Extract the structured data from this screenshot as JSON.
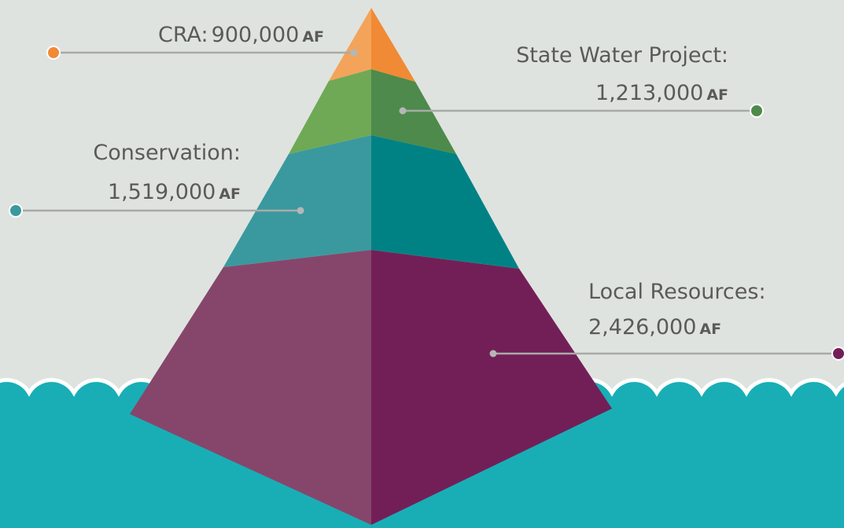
{
  "callouts": [
    {
      "label": "CRA:",
      "amount": "900,000",
      "unit": "AF"
    },
    {
      "label": "State Water Project:",
      "amount": "1,213,000",
      "unit": "AF"
    },
    {
      "label": "Conservation:",
      "amount": "1,519,000",
      "unit": "AF"
    },
    {
      "label": "Local Resources:",
      "amount": "2,426,000",
      "unit": "AF"
    }
  ]
}
